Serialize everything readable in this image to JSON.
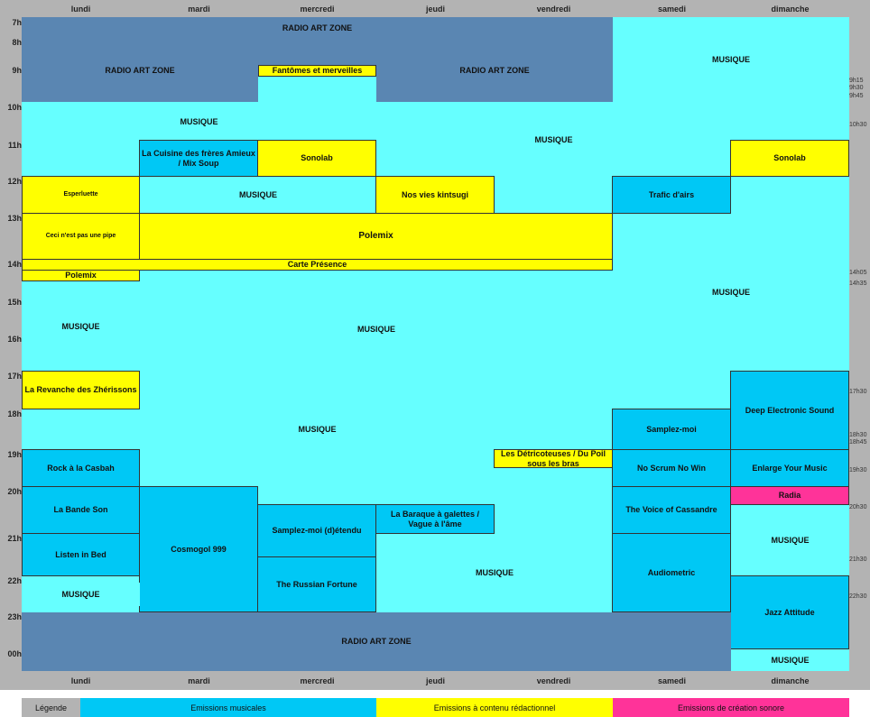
{
  "days": [
    "lundi",
    "mardi",
    "mercredi",
    "jeudi",
    "vendredi",
    "samedi",
    "dimanche"
  ],
  "hours": [
    "7h",
    "8h",
    "9h",
    "10h",
    "11h",
    "12h",
    "13h",
    "14h",
    "15h",
    "16h",
    "17h",
    "18h",
    "19h",
    "20h",
    "21h",
    "22h",
    "23h",
    "00h"
  ],
  "ticks": [
    "9h15",
    "9h30",
    "9h45",
    "10h30",
    "14h05",
    "14h35",
    "17h30",
    "18h30",
    "18h45",
    "19h30",
    "20h30",
    "21h30",
    "22h30"
  ],
  "programs": {
    "raz_top": "RADIO ART ZONE",
    "raz_lundi": "RADIO ART ZONE",
    "raz_jeudi": "RADIO ART ZONE",
    "fantomes": "Fantômes et merveilles",
    "musique_sam_morning": "MUSIQUE",
    "musique_mardi_10": "MUSIQUE",
    "musique_vendredi_11": "MUSIQUE",
    "cuisine": "La Cuisine des frères Amieux / Mix Soup",
    "sonolab_mer": "Sonolab",
    "sonolab_dim": "Sonolab",
    "esperluette": "Esperluette",
    "musique_mardi_12": "MUSIQUE",
    "kintsugi": "Nos vies kintsugi",
    "trafic": "Trafic d'airs",
    "ceci": "Ceci n'est pas une pipe",
    "polemix_big": "Polemix",
    "carte": "Carte Présence",
    "polemix_small": "Polemix",
    "musique_sam_14": "MUSIQUE",
    "musique_lundi_15": "MUSIQUE",
    "musique_mer_15": "MUSIQUE",
    "revanche": "La Revanche des Zhérissons",
    "deep": "Deep Electronic Sound",
    "musique_mardi_18": "MUSIQUE",
    "samplez": "Samplez-moi",
    "detricoteuses": "Les Détricoteuses / Du Poil sous les bras",
    "casbah": "Rock à la Casbah",
    "noscrum": "No Scrum No Win",
    "enlarge": "Enlarge Your Music",
    "radia": "Radia",
    "bandeson": "La Bande Son",
    "cosmogol": "Cosmogol 999",
    "samplez_etendu": "Samplez-moi (d)étendu",
    "baraque": "La Baraque à galettes / Vague à l'âme",
    "cassandre": "The Voice of Cassandre",
    "musique_dim_21": "MUSIQUE",
    "listen": "Listen in Bed",
    "russian": "The Russian Fortune",
    "musique_jeudi_22": "MUSIQUE",
    "audiometric": "Audiometric",
    "musique_lundi_22": "MUSIQUE",
    "jazz": "Jazz Attitude",
    "raz_night": "RADIO ART ZONE",
    "musique_dim_00": "MUSIQUE"
  },
  "legend": {
    "title": "Légende",
    "musical": "Emissions musicales",
    "editorial": "Emissions à contenu rédactionnel",
    "creation": "Emissions de création sonore"
  },
  "colors": {
    "radio_art_zone": "#5a86b2",
    "musique": "#66ffff",
    "musical": "#00c8f5",
    "editorial": "#ffff00",
    "creation": "#ff3399",
    "header": "#b3b3b3"
  }
}
